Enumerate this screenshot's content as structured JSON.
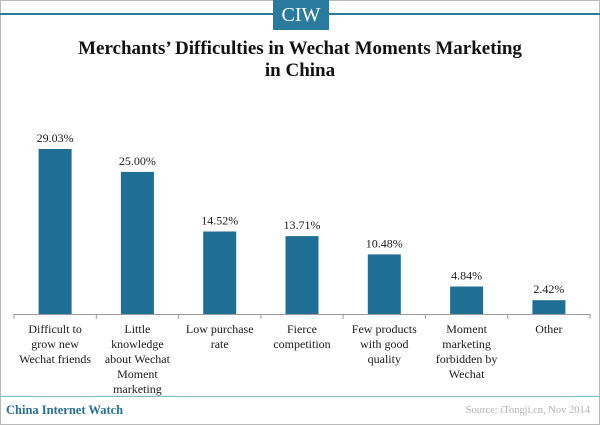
{
  "brand": {
    "badge": "CIW",
    "footer": "China Internet Watch"
  },
  "source": "Source: iTongji.cn, Nov 2014",
  "colors": {
    "accent": "#2a7a9e",
    "bar": "#1f6e96"
  },
  "chart_data": {
    "type": "bar",
    "title_lines": [
      "Merchants’ Difficulties in Wechat Moments Marketing",
      "in China"
    ],
    "xlabel": "",
    "ylabel": "",
    "ylim": [
      0,
      30
    ],
    "grid": false,
    "categories": [
      [
        "Difficult to",
        "grow new",
        "Wechat friends"
      ],
      [
        "Little",
        "knowledge",
        "about Wechat",
        "Moment",
        "marketing"
      ],
      [
        "Low purchase",
        "rate"
      ],
      [
        "Fierce",
        "competition"
      ],
      [
        "Few products",
        "with good",
        "quality"
      ],
      [
        "Moment",
        "marketing",
        "forbidden by",
        "Wechat"
      ],
      [
        "Other"
      ]
    ],
    "values": [
      29.03,
      25.0,
      14.52,
      13.71,
      10.48,
      4.84,
      2.42
    ],
    "value_labels": [
      "29.03%",
      "25.00%",
      "14.52%",
      "13.71%",
      "10.48%",
      "4.84%",
      "2.42%"
    ]
  }
}
